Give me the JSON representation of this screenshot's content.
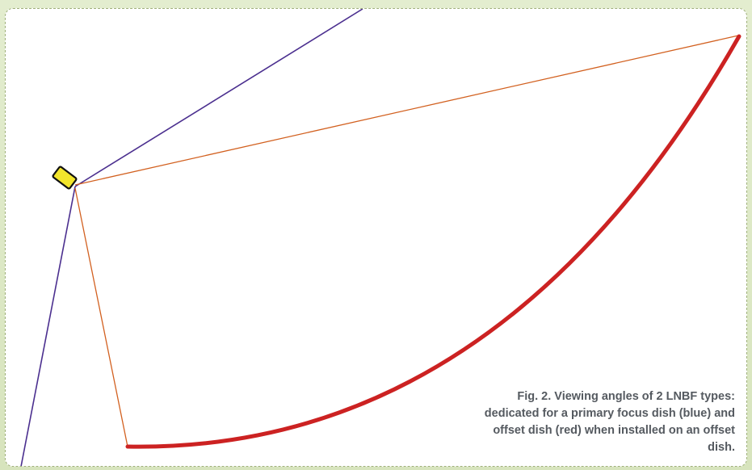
{
  "caption": "Fig. 2. Viewing angles of 2 LNBF types: dedicated for a primary focus dish (blue) and offset dish (red) when installed on an offset dish.",
  "colors": {
    "primary_focus_lines": "#4b2f8f",
    "offset_lines": "#d2601f",
    "offset_dish": "#cc2222",
    "lnbf_body": "#f2e52c",
    "lnbf_outline": "#111111",
    "caption_text": "#555a60",
    "frame_background": "#dce8c6"
  },
  "elements": {
    "lnbf": "lnbf-icon",
    "primary_focus_view": "primary-focus-viewing-angle",
    "offset_view": "offset-viewing-angle",
    "dish": "offset-dish-reflector"
  }
}
